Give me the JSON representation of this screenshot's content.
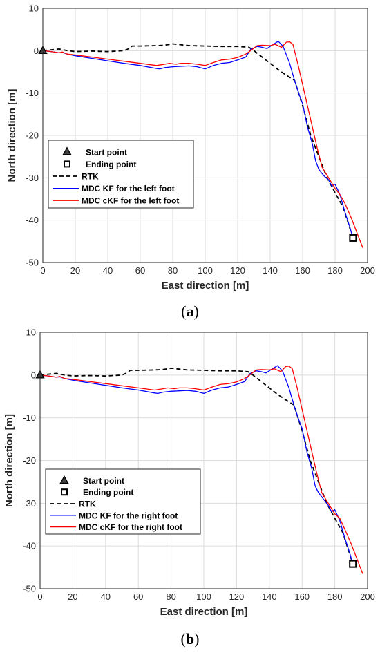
{
  "chart_data": [
    {
      "type": "line",
      "panel": "a",
      "caption_letter": "a",
      "xlabel": "East direction [m]",
      "ylabel": "North direction [m]",
      "xlim": [
        0,
        200
      ],
      "ylim": [
        -50,
        10
      ],
      "xticks": [
        0,
        20,
        40,
        60,
        80,
        100,
        120,
        140,
        160,
        180,
        200
      ],
      "yticks": [
        10,
        0,
        -10,
        -20,
        -30,
        -40,
        -50
      ],
      "grid": true,
      "legend_position": "lower-left",
      "markers": [
        {
          "name": "Start point",
          "symbol": "triangle",
          "x": 0,
          "y": 0
        },
        {
          "name": "Ending point",
          "symbol": "square",
          "x": 191,
          "y": -44.2
        }
      ],
      "series": [
        {
          "name": "RTK",
          "color": "#000000",
          "style": "dashed",
          "x": [
            0,
            5,
            10,
            15,
            20,
            30,
            40,
            50,
            53,
            55,
            60,
            70,
            75,
            80,
            85,
            90,
            100,
            110,
            120,
            127,
            130,
            135,
            140,
            145,
            150,
            155,
            160,
            165,
            170,
            175,
            180,
            185,
            190,
            191
          ],
          "y": [
            0,
            0.2,
            0.4,
            0.0,
            -0.2,
            -0.1,
            -0.2,
            0.0,
            0.5,
            1.1,
            1.1,
            1.2,
            1.3,
            1.6,
            1.4,
            1.2,
            1.1,
            1.0,
            1.0,
            0.8,
            0.0,
            -1.5,
            -3.0,
            -4.5,
            -5.8,
            -7.0,
            -13.0,
            -20.0,
            -25.0,
            -30.0,
            -33.5,
            -37.0,
            -43.0,
            -44.2
          ]
        },
        {
          "name": "MDC KF for the left foot",
          "color": "#0000ff",
          "style": "solid",
          "x": [
            0,
            5,
            10,
            12,
            15,
            20,
            30,
            40,
            50,
            60,
            70,
            72,
            75,
            80,
            85,
            90,
            95,
            100,
            105,
            110,
            115,
            120,
            125,
            128,
            132,
            135,
            138,
            142,
            145,
            148,
            152,
            155,
            158,
            160,
            163,
            166,
            168,
            170,
            173,
            176,
            178,
            180,
            183,
            186,
            189,
            191
          ],
          "y": [
            0,
            -0.2,
            -0.5,
            -0.4,
            -0.8,
            -1.2,
            -1.8,
            -2.4,
            -3.0,
            -3.5,
            -4.2,
            -4.3,
            -4.0,
            -3.8,
            -3.7,
            -3.6,
            -3.8,
            -4.3,
            -3.5,
            -3.0,
            -2.8,
            -2.2,
            -1.5,
            0.3,
            1.0,
            0.8,
            0.5,
            1.5,
            2.2,
            1.0,
            -3.0,
            -7.0,
            -10.5,
            -12.5,
            -18.0,
            -22.0,
            -26.0,
            -28.0,
            -29.5,
            -30.5,
            -32.0,
            -31.5,
            -34.0,
            -38.0,
            -41.5,
            -44.2
          ]
        },
        {
          "name": "MDC cKF for the left foot",
          "color": "#ff0000",
          "style": "solid",
          "x": [
            0,
            5,
            10,
            12,
            15,
            20,
            30,
            40,
            50,
            60,
            70,
            75,
            78,
            82,
            85,
            90,
            95,
            100,
            105,
            110,
            115,
            120,
            125,
            128,
            132,
            135,
            140,
            143,
            147,
            150,
            152,
            154,
            157,
            160,
            163,
            166,
            169,
            172,
            176,
            180,
            183,
            186,
            190,
            194,
            197
          ],
          "y": [
            0,
            -0.2,
            -0.5,
            -0.3,
            -0.8,
            -1.0,
            -1.5,
            -2.0,
            -2.5,
            -3.0,
            -3.5,
            -3.2,
            -3.0,
            -3.2,
            -3.0,
            -3.0,
            -3.2,
            -3.5,
            -2.8,
            -2.2,
            -2.0,
            -1.6,
            -0.8,
            0.0,
            1.2,
            1.3,
            1.2,
            1.5,
            0.8,
            2.0,
            2.1,
            1.5,
            -3.0,
            -8.0,
            -13.0,
            -18.0,
            -23.0,
            -27.5,
            -30.0,
            -32.5,
            -34.0,
            -36.0,
            -39.5,
            -43.5,
            -46.5
          ]
        }
      ]
    },
    {
      "type": "line",
      "panel": "b",
      "caption_letter": "b",
      "xlabel": "East direction [m]",
      "ylabel": "North direction [m]",
      "xlim": [
        0,
        200
      ],
      "ylim": [
        -50,
        10
      ],
      "xticks": [
        0,
        20,
        40,
        60,
        80,
        100,
        120,
        140,
        160,
        180,
        200
      ],
      "yticks": [
        10,
        0,
        -10,
        -20,
        -30,
        -40,
        -50
      ],
      "grid": true,
      "legend_position": "lower-left",
      "markers": [
        {
          "name": "Start point",
          "symbol": "triangle",
          "x": 0,
          "y": 0
        },
        {
          "name": "Ending point",
          "symbol": "square",
          "x": 191,
          "y": -44.2
        }
      ],
      "series": [
        {
          "name": "RTK",
          "color": "#000000",
          "style": "dashed",
          "x": [
            0,
            5,
            10,
            15,
            20,
            30,
            40,
            50,
            53,
            55,
            60,
            70,
            75,
            80,
            85,
            90,
            100,
            110,
            120,
            127,
            130,
            135,
            140,
            145,
            150,
            155,
            160,
            165,
            170,
            175,
            180,
            185,
            190,
            191
          ],
          "y": [
            0,
            0.2,
            0.4,
            0.0,
            -0.2,
            -0.1,
            -0.2,
            0.0,
            0.5,
            1.1,
            1.1,
            1.2,
            1.3,
            1.6,
            1.4,
            1.2,
            1.1,
            1.0,
            1.0,
            0.8,
            0.0,
            -1.5,
            -3.0,
            -4.5,
            -5.8,
            -7.0,
            -13.0,
            -20.0,
            -25.0,
            -30.0,
            -33.5,
            -37.0,
            -43.0,
            -44.2
          ]
        },
        {
          "name": "MDC KF for the right foot",
          "color": "#0000ff",
          "style": "solid",
          "x": [
            0,
            5,
            10,
            12,
            15,
            20,
            30,
            40,
            50,
            60,
            70,
            72,
            75,
            80,
            85,
            90,
            95,
            100,
            105,
            110,
            115,
            120,
            125,
            128,
            132,
            135,
            138,
            142,
            145,
            148,
            152,
            155,
            158,
            160,
            163,
            166,
            168,
            170,
            173,
            176,
            178,
            180,
            183,
            186,
            189,
            191
          ],
          "y": [
            0,
            -0.2,
            -0.5,
            -0.4,
            -0.8,
            -1.2,
            -1.8,
            -2.4,
            -3.0,
            -3.5,
            -4.2,
            -4.3,
            -4.0,
            -3.8,
            -3.7,
            -3.6,
            -3.8,
            -4.3,
            -3.5,
            -3.0,
            -2.8,
            -2.2,
            -1.5,
            0.3,
            1.0,
            0.8,
            0.5,
            1.5,
            2.2,
            1.0,
            -3.0,
            -7.0,
            -10.5,
            -12.5,
            -18.0,
            -22.0,
            -26.0,
            -27.5,
            -29.0,
            -30.5,
            -32.0,
            -31.5,
            -34.0,
            -38.0,
            -41.5,
            -44.2
          ]
        },
        {
          "name": "MDC cKF for the right foot",
          "color": "#ff0000",
          "style": "solid",
          "x": [
            0,
            5,
            10,
            12,
            15,
            20,
            30,
            40,
            50,
            60,
            70,
            75,
            78,
            82,
            85,
            90,
            95,
            100,
            105,
            110,
            115,
            120,
            125,
            128,
            132,
            135,
            140,
            143,
            147,
            150,
            152,
            154,
            157,
            160,
            163,
            166,
            169,
            172,
            176,
            180,
            183,
            186,
            190,
            194,
            197
          ],
          "y": [
            0,
            -0.2,
            -0.5,
            -0.3,
            -0.8,
            -1.0,
            -1.5,
            -2.0,
            -2.5,
            -3.0,
            -3.5,
            -3.2,
            -3.0,
            -3.2,
            -3.0,
            -3.0,
            -3.2,
            -3.5,
            -2.8,
            -2.2,
            -2.0,
            -1.6,
            -0.8,
            0.0,
            1.2,
            1.3,
            1.2,
            1.5,
            0.8,
            2.0,
            2.1,
            1.5,
            -3.0,
            -8.0,
            -13.0,
            -18.0,
            -23.0,
            -27.5,
            -30.0,
            -32.5,
            -33.5,
            -36.0,
            -39.5,
            -43.5,
            -46.5
          ]
        }
      ]
    }
  ]
}
